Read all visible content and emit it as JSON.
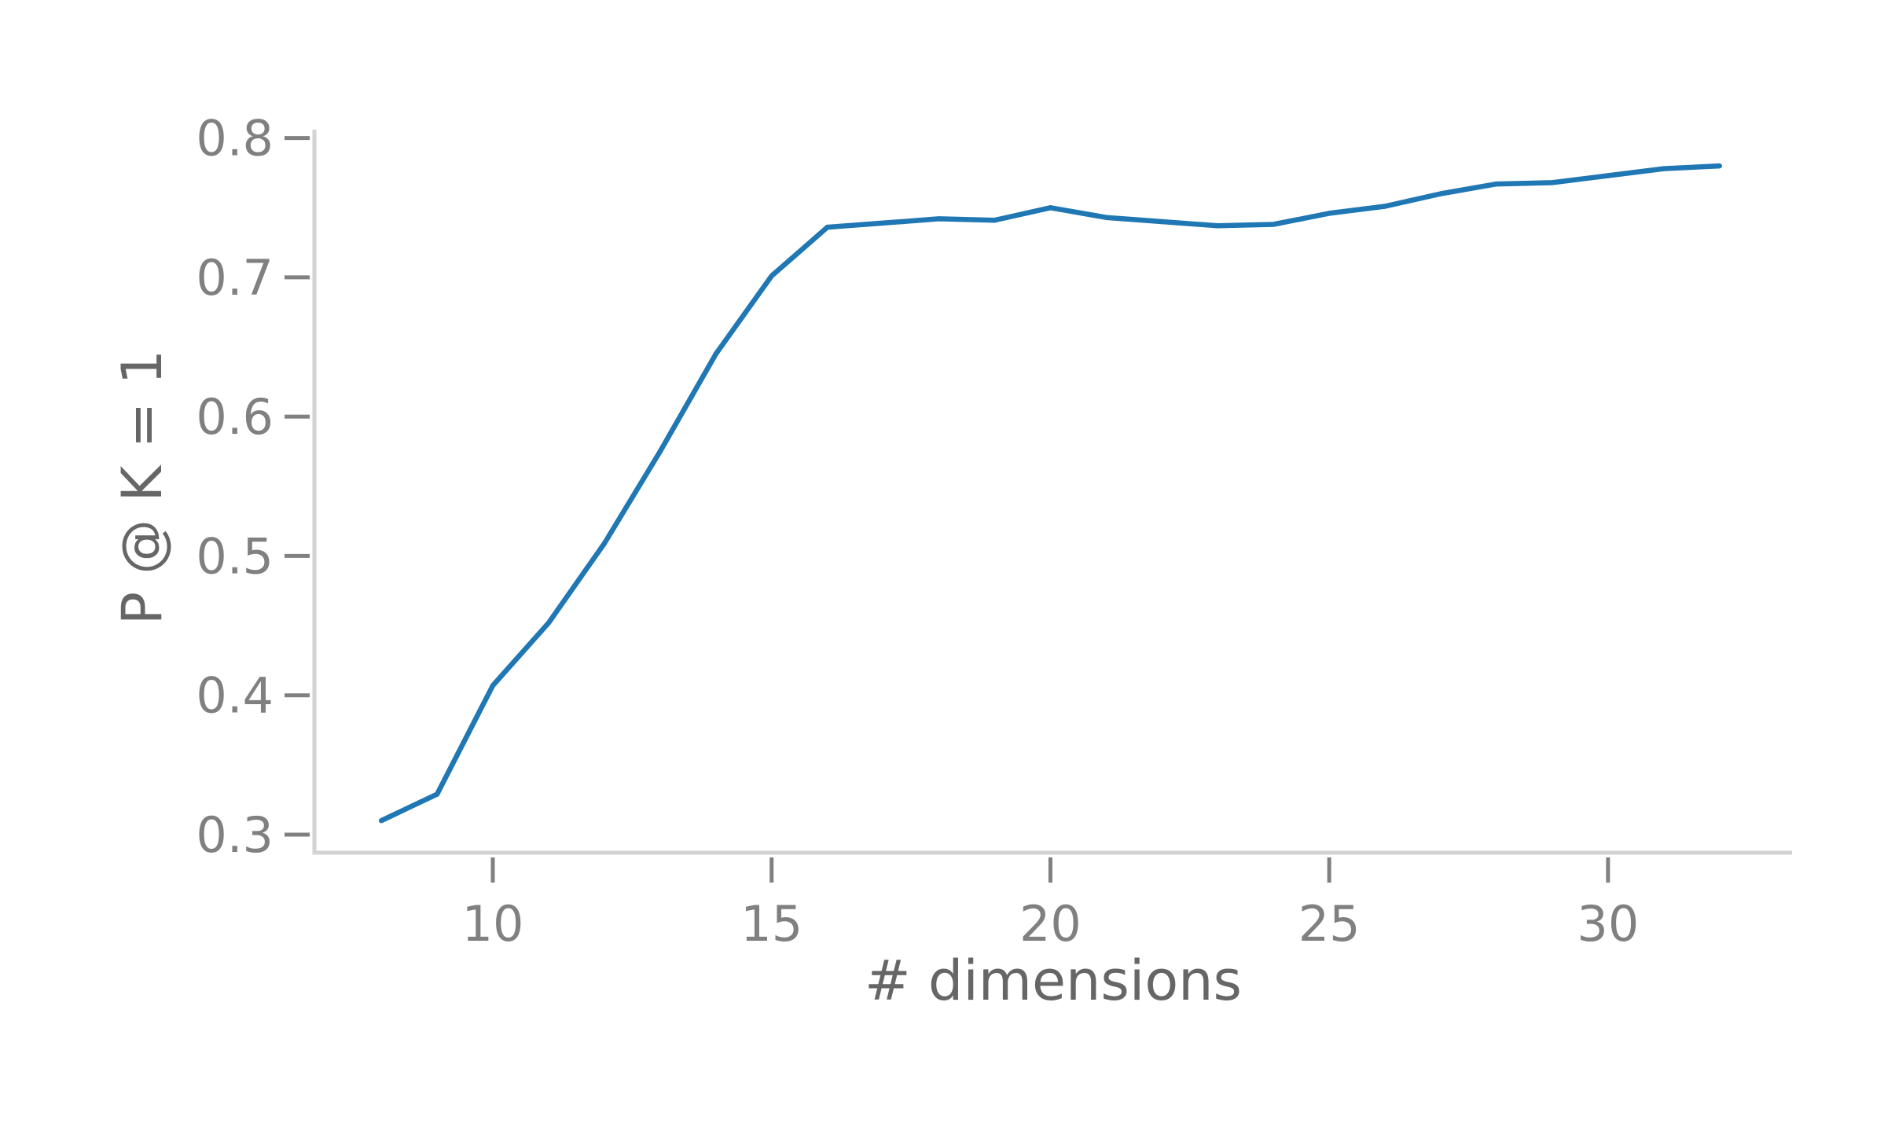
{
  "chart_data": {
    "type": "line",
    "title": "",
    "xlabel": "# dimensions",
    "ylabel": "P @ K = 1",
    "xlim": [
      6.8,
      33.3
    ],
    "ylim": [
      0.287,
      0.806
    ],
    "x_ticks": [
      10,
      15,
      20,
      25,
      30
    ],
    "x_tick_labels": [
      "10",
      "15",
      "20",
      "25",
      "30"
    ],
    "y_ticks": [
      0.3,
      0.4,
      0.5,
      0.6,
      0.7,
      0.8
    ],
    "y_tick_labels": [
      "0.3",
      "0.4",
      "0.5",
      "0.6",
      "0.7",
      "0.8"
    ],
    "grid": false,
    "legend": "none",
    "colors": {
      "line": "#1f77b4",
      "axis": "#d3d3d3",
      "tick": "#808080",
      "tick_label": "#808080",
      "axis_title": "#666666"
    },
    "series": [
      {
        "x": [
          8,
          9,
          10,
          11,
          12,
          13,
          14,
          15,
          16,
          17,
          18,
          19,
          20,
          21,
          22,
          23,
          24,
          25,
          26,
          27,
          28,
          29,
          30,
          31,
          32
        ],
        "values": [
          0.31,
          0.329,
          0.407,
          0.452,
          0.509,
          0.575,
          0.645,
          0.701,
          0.736,
          0.739,
          0.742,
          0.741,
          0.75,
          0.743,
          0.74,
          0.737,
          0.738,
          0.746,
          0.751,
          0.76,
          0.767,
          0.768,
          0.773,
          0.778,
          0.78
        ]
      }
    ]
  }
}
